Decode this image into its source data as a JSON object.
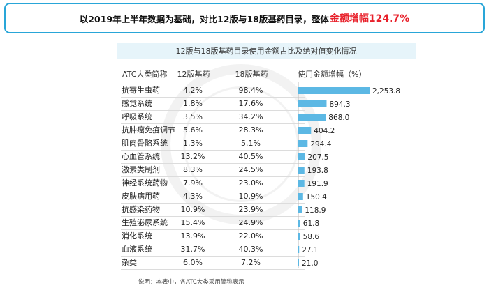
{
  "headline": {
    "prefix": "以2019年上半年数据为基础，对比12版与18版基药目录，整体",
    "highlight": "金额增幅124.7%"
  },
  "subtitle": "12版与18版基药目录使用金额占比及绝对值变化情况",
  "headers": {
    "atc": "ATC大类简称",
    "v12": "12版基药",
    "v18": "18版基药",
    "growth": "使用金额增幅（%）"
  },
  "footnote": "说明：本表中，各ATC大类采用简称表示",
  "colors": {
    "accent": "#29a6d8",
    "bar": "#5cb8e4",
    "highlight": "#e8212b"
  },
  "chart_data": {
    "type": "bar",
    "orientation": "horizontal",
    "categories": [
      "抗寄生虫药",
      "感觉系统",
      "呼吸系统",
      "抗肿瘤免疫调节",
      "肌肉骨骼系统",
      "心血管系统",
      "激素类制剂",
      "神经系统药物",
      "皮肤病用药",
      "抗感染药物",
      "生殖泌尿系统",
      "消化系统",
      "血液系统",
      "杂类"
    ],
    "share_12": [
      "4.2%",
      "1.8%",
      "3.5%",
      "5.6%",
      "1.3%",
      "13.2%",
      "8.3%",
      "7.9%",
      "4.3%",
      "10.9%",
      "15.4%",
      "13.9%",
      "31.7%",
      "6.0%"
    ],
    "share_18": [
      "98.4%",
      "17.6%",
      "34.2%",
      "28.3%",
      "5.1%",
      "40.5%",
      "24.5%",
      "23.0%",
      "10.9%",
      "23.9%",
      "24.9%",
      "22.0%",
      "40.3%",
      "7.2%"
    ],
    "values": [
      2253.8,
      894.3,
      868.0,
      404.2,
      294.4,
      207.5,
      193.8,
      191.9,
      150.4,
      118.9,
      61.8,
      58.6,
      27.1,
      21.0
    ],
    "value_labels": [
      "2,253.8",
      "894.3",
      "868.0",
      "404.2",
      "294.4",
      "207.5",
      "193.8",
      "191.9",
      "150.4",
      "118.9",
      "61.8",
      "58.6",
      "27.1",
      "21.0"
    ],
    "xlim": [
      0,
      2253.8
    ],
    "grid": false,
    "legend": "none"
  }
}
